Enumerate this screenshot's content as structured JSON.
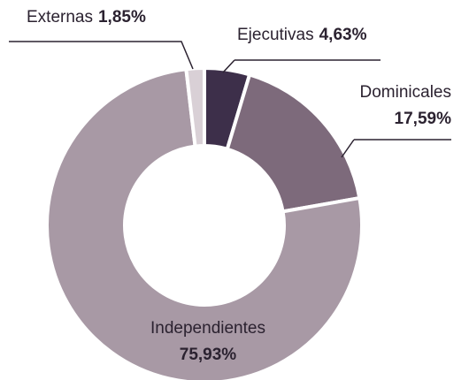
{
  "chart_data": {
    "type": "donut",
    "categories": [
      "Ejecutivas",
      "Dominicales",
      "Independientes",
      "Externas"
    ],
    "values": [
      4.63,
      17.59,
      75.93,
      1.85
    ],
    "value_labels": [
      "4,63%",
      "17,59%",
      "75,93%",
      "1,85%"
    ],
    "colors": [
      "#3d2f4a",
      "#7d6a7b",
      "#a899a5",
      "#d9d0d6"
    ]
  }
}
